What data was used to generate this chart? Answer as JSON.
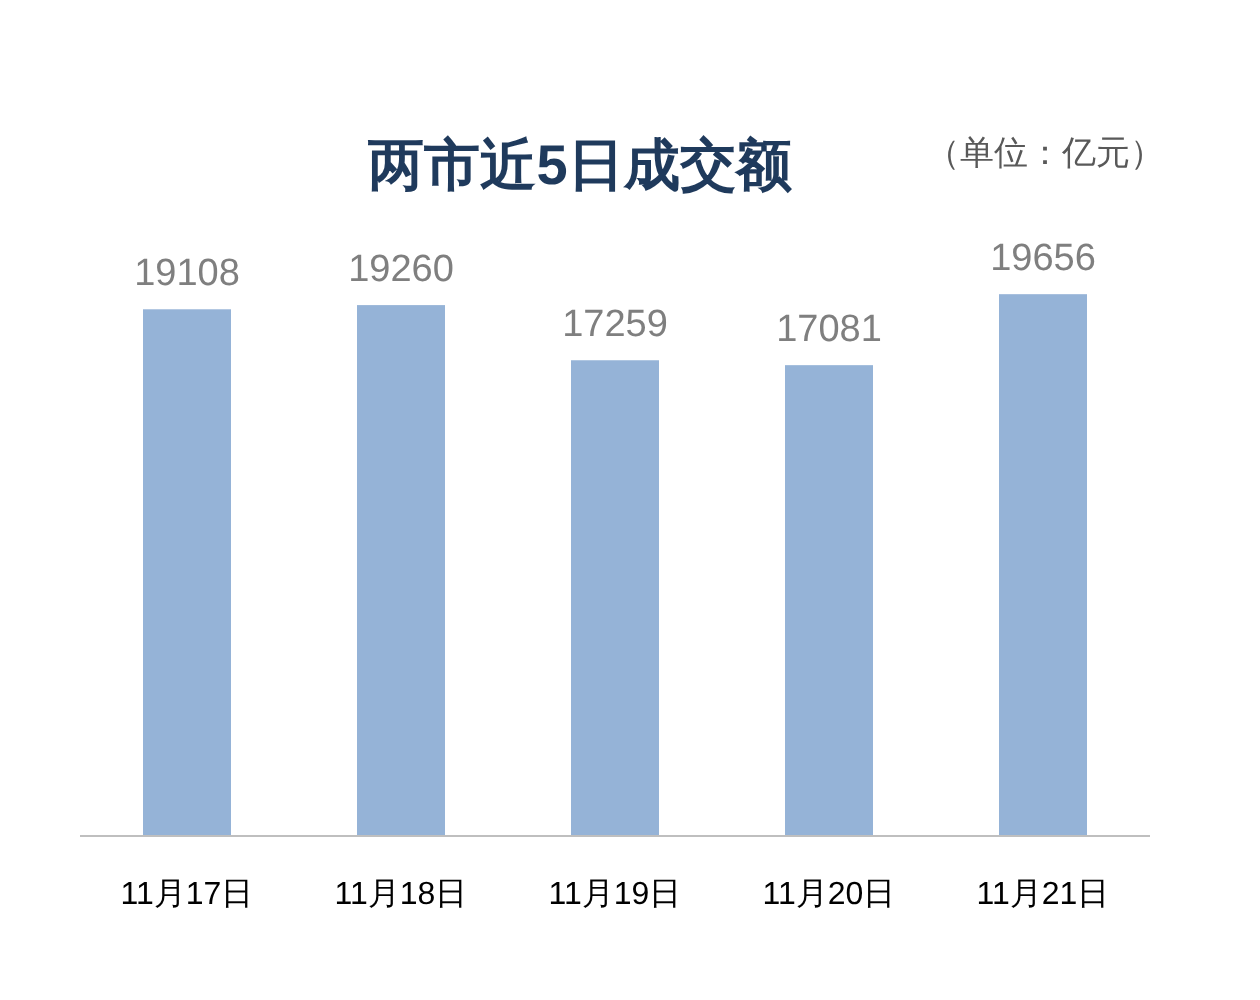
{
  "chart_data": {
    "type": "bar",
    "title": "两市近5日成交额",
    "annotations": [
      "（单位：亿元）"
    ],
    "categories": [
      "11月17日",
      "11月18日",
      "11月19日",
      "11月20日",
      "11月21日"
    ],
    "values": [
      19108,
      19260,
      17259,
      17081,
      19656
    ],
    "color": "#95b3d7",
    "data_labels": true
  }
}
